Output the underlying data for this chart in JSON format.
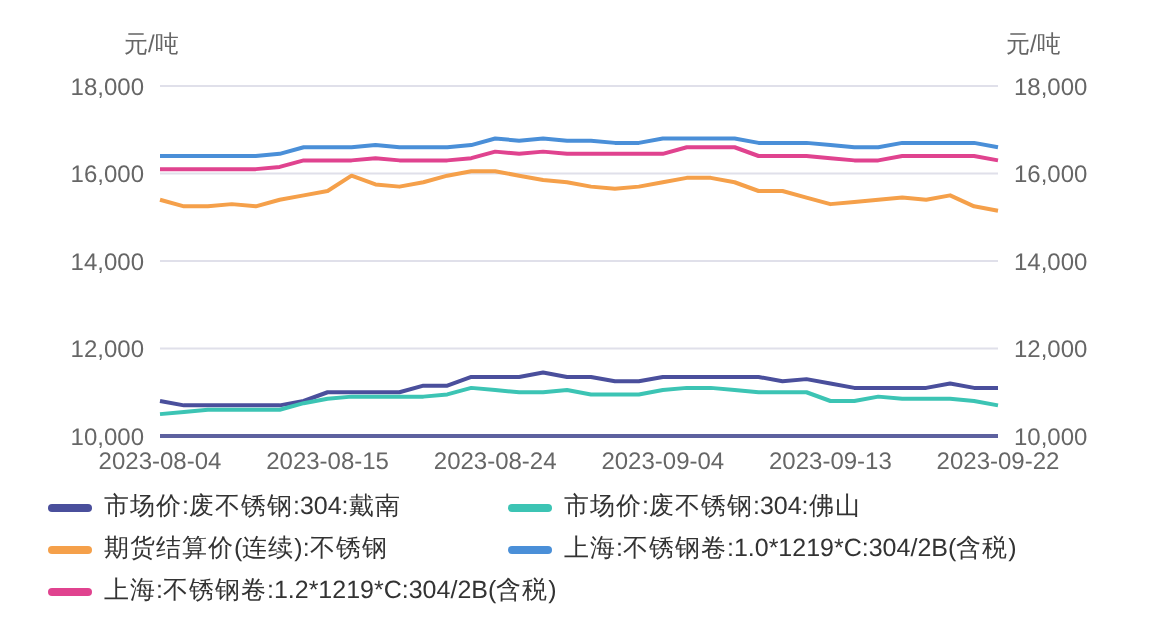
{
  "chart_data": {
    "type": "line",
    "ylabel": "元/吨",
    "y2label": "元/吨",
    "categories": [
      "2023-08-04",
      null,
      null,
      null,
      null,
      null,
      null,
      "2023-08-15",
      null,
      null,
      null,
      null,
      null,
      null,
      "2023-08-24",
      null,
      null,
      null,
      null,
      null,
      null,
      "2023-09-04",
      null,
      null,
      null,
      null,
      null,
      null,
      "2023-09-13",
      null,
      null,
      null,
      null,
      null,
      null,
      "2023-09-22"
    ],
    "ylim": [
      10000,
      18000
    ],
    "yticks": [
      {
        "value": 10000,
        "label": "10,000"
      },
      {
        "value": 12000,
        "label": "12,000"
      },
      {
        "value": 14000,
        "label": "14,000"
      },
      {
        "value": 16000,
        "label": "16,000"
      },
      {
        "value": 18000,
        "label": "18,000"
      }
    ],
    "y2lim": [
      10000,
      18000
    ],
    "y2ticks": [
      {
        "value": 10000,
        "label": "10,000"
      },
      {
        "value": 12000,
        "label": "12,000"
      },
      {
        "value": 14000,
        "label": "14,000"
      },
      {
        "value": 16000,
        "label": "16,000"
      },
      {
        "value": 18000,
        "label": "18,000"
      }
    ],
    "grid": "y",
    "legend": "bottom",
    "marker": "none",
    "line_style": "solid",
    "series": [
      {
        "name": "市场价:废不锈钢:304:戴南",
        "color": "#4a4f9c",
        "values": [
          10800,
          10700,
          10700,
          10700,
          10700,
          10700,
          10800,
          11000,
          11000,
          11000,
          11000,
          11150,
          11150,
          11350,
          11350,
          11350,
          11450,
          11350,
          11350,
          11250,
          11250,
          11350,
          11350,
          11350,
          11350,
          11350,
          11250,
          11300,
          11200,
          11100,
          11100,
          11100,
          11100,
          11200,
          11100,
          11100
        ]
      },
      {
        "name": "市场价:废不锈钢:304:佛山",
        "color": "#3cc4b4",
        "values": [
          10500,
          10550,
          10600,
          10600,
          10600,
          10600,
          10750,
          10850,
          10900,
          10900,
          10900,
          10900,
          10950,
          11100,
          11050,
          11000,
          11000,
          11050,
          10950,
          10950,
          10950,
          11050,
          11100,
          11100,
          11050,
          11000,
          11000,
          11000,
          10800,
          10800,
          10900,
          10850,
          10850,
          10850,
          10800,
          10700
        ]
      },
      {
        "name": "期货结算价(连续):不锈钢",
        "color": "#f5a04a",
        "values": [
          15400,
          15250,
          15250,
          15300,
          15250,
          15400,
          15500,
          15600,
          15950,
          15750,
          15700,
          15800,
          15950,
          16050,
          16050,
          15950,
          15850,
          15800,
          15700,
          15650,
          15700,
          15800,
          15900,
          15900,
          15800,
          15600,
          15600,
          15450,
          15300,
          15350,
          15400,
          15450,
          15400,
          15500,
          15250,
          15150
        ]
      },
      {
        "name": "上海:不锈钢卷:1.0*1219*C:304/2B(含税)",
        "color": "#4a8fd8",
        "values": [
          16400,
          16400,
          16400,
          16400,
          16400,
          16450,
          16600,
          16600,
          16600,
          16650,
          16600,
          16600,
          16600,
          16650,
          16800,
          16750,
          16800,
          16750,
          16750,
          16700,
          16700,
          16800,
          16800,
          16800,
          16800,
          16700,
          16700,
          16700,
          16650,
          16600,
          16600,
          16700,
          16700,
          16700,
          16700,
          16600
        ]
      },
      {
        "name": "上海:不锈钢卷:1.2*1219*C:304/2B(含税)",
        "color": "#e0438f",
        "values": [
          16100,
          16100,
          16100,
          16100,
          16100,
          16150,
          16300,
          16300,
          16300,
          16350,
          16300,
          16300,
          16300,
          16350,
          16500,
          16450,
          16500,
          16450,
          16450,
          16450,
          16450,
          16450,
          16600,
          16600,
          16600,
          16400,
          16400,
          16400,
          16350,
          16300,
          16300,
          16400,
          16400,
          16400,
          16400,
          16300
        ]
      }
    ]
  }
}
